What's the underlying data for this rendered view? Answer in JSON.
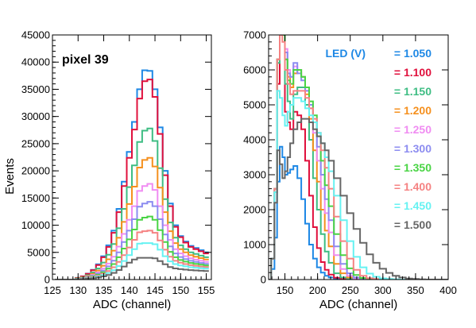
{
  "chart_data": [
    {
      "type": "line",
      "style": "step-histogram",
      "annotation": "pixel 39",
      "xlabel": "ADC (channel)",
      "ylabel": "Events",
      "xlim": [
        125,
        156
      ],
      "ylim": [
        0,
        45000
      ],
      "x_ticks": [
        "125",
        "130",
        "135",
        "140",
        "145",
        "150",
        "155"
      ],
      "y_ticks": [
        "0",
        "5000",
        "10000",
        "15000",
        "20000",
        "25000",
        "30000",
        "35000",
        "40000",
        "45000"
      ],
      "x": [
        126,
        127,
        128,
        129,
        130,
        131,
        132,
        133,
        134,
        135,
        136,
        137,
        138,
        139,
        140,
        141,
        142,
        143,
        144,
        145,
        146,
        147,
        148,
        149,
        150,
        151,
        152,
        153,
        154,
        155
      ],
      "series": [
        {
          "color": "#1e88e5",
          "values": [
            0,
            0,
            0,
            0,
            300,
            600,
            1100,
            1800,
            2800,
            4300,
            6300,
            9000,
            13000,
            18000,
            23500,
            29000,
            35000,
            38500,
            38400,
            35000,
            28000,
            20000,
            14000,
            10000,
            8000,
            7000,
            6200,
            5800,
            5400,
            5000
          ]
        },
        {
          "color": "#e0103c",
          "values": [
            0,
            0,
            0,
            0,
            290,
            580,
            1050,
            1720,
            2670,
            4100,
            6000,
            8600,
            12400,
            17200,
            22400,
            27600,
            33300,
            36500,
            36800,
            33600,
            26800,
            19200,
            13500,
            9700,
            7800,
            6800,
            6000,
            5600,
            5200,
            4800
          ]
        },
        {
          "color": "#3ebd83",
          "values": [
            0,
            0,
            0,
            0,
            220,
            440,
            800,
            1310,
            2030,
            3120,
            4570,
            6540,
            9440,
            13000,
            17000,
            21000,
            25300,
            27400,
            27800,
            25500,
            20500,
            14800,
            10500,
            7700,
            6300,
            5600,
            5000,
            4700,
            4400,
            4100
          ]
        },
        {
          "color": "#f5901e",
          "values": [
            0,
            0,
            0,
            0,
            180,
            360,
            650,
            1060,
            1660,
            2540,
            3720,
            5320,
            7680,
            10600,
            13900,
            17100,
            20600,
            22000,
            22400,
            20800,
            16900,
            12400,
            8900,
            6700,
            5600,
            5000,
            4500,
            4200,
            3950,
            3700
          ]
        },
        {
          "color": "#f08cf2",
          "values": [
            0,
            0,
            0,
            0,
            140,
            280,
            520,
            840,
            1320,
            2000,
            2940,
            4200,
            6060,
            8400,
            11000,
            13500,
            16300,
            17200,
            17600,
            16500,
            13500,
            10000,
            7300,
            5600,
            4800,
            4300,
            3900,
            3650,
            3450,
            3250
          ]
        },
        {
          "color": "#8c8cf0",
          "values": [
            0,
            0,
            0,
            0,
            120,
            230,
            430,
            690,
            1080,
            1650,
            2420,
            3460,
            5000,
            6900,
            9000,
            11100,
            13400,
            14000,
            14300,
            13500,
            11100,
            8300,
            6100,
            4800,
            4150,
            3750,
            3450,
            3250,
            3050,
            2900
          ]
        },
        {
          "color": "#49d444",
          "values": [
            0,
            0,
            0,
            0,
            95,
            190,
            350,
            570,
            890,
            1360,
            2000,
            2850,
            4100,
            5700,
            7400,
            9200,
            11000,
            11400,
            11600,
            11000,
            9100,
            6900,
            5100,
            4100,
            3600,
            3300,
            3050,
            2900,
            2750,
            2600
          ]
        },
        {
          "color": "#f58282",
          "values": [
            0,
            0,
            0,
            0,
            75,
            150,
            280,
            450,
            710,
            1080,
            1580,
            2260,
            3260,
            4500,
            5900,
            7300,
            8700,
            8900,
            9000,
            8600,
            7200,
            5500,
            4200,
            3450,
            3100,
            2850,
            2650,
            2520,
            2400,
            2300
          ]
        },
        {
          "color": "#66f2f2",
          "values": [
            0,
            0,
            0,
            0,
            60,
            115,
            210,
            340,
            540,
            820,
            1200,
            1720,
            2480,
            3420,
            4500,
            5600,
            6600,
            6700,
            6700,
            6500,
            5500,
            4300,
            3350,
            2850,
            2600,
            2420,
            2270,
            2170,
            2080,
            2000
          ]
        },
        {
          "color": "#666666",
          "values": [
            0,
            0,
            0,
            0,
            40,
            80,
            150,
            240,
            380,
            580,
            850,
            1220,
            1750,
            2400,
            3100,
            3700,
            4000,
            4000,
            4000,
            3900,
            3400,
            2800,
            2300,
            2050,
            1920,
            1820,
            1740,
            1680,
            1620,
            1570
          ]
        }
      ]
    },
    {
      "type": "line",
      "style": "step-histogram",
      "xlabel": "ADC (channel)",
      "ylabel": "",
      "xlim": [
        125,
        400
      ],
      "ylim": [
        0,
        7000
      ],
      "x_ticks": [
        "150",
        "200",
        "250",
        "300",
        "350",
        "400"
      ],
      "y_ticks": [
        "0",
        "1000",
        "2000",
        "3000",
        "4000",
        "5000",
        "6000",
        "7000"
      ],
      "legend_title": "LED (V)",
      "legend_placement": "right",
      "x": [
        126,
        132,
        136,
        140,
        144,
        148,
        152,
        156,
        160,
        166,
        172,
        178,
        184,
        190,
        196,
        202,
        208,
        214,
        220,
        230,
        240,
        250,
        260,
        270,
        280,
        290,
        300,
        310,
        320,
        330,
        340,
        350,
        360,
        370,
        380,
        390,
        398
      ],
      "series": [
        {
          "name": "= 1.050",
          "color": "#1e88e5",
          "values": [
            0,
            300,
            1200,
            2800,
            3800,
            3500,
            3000,
            3050,
            3150,
            3250,
            2900,
            2300,
            1600,
            1000,
            600,
            350,
            200,
            110,
            60,
            20,
            5,
            0,
            0,
            0,
            0,
            0,
            0,
            0,
            0,
            0,
            0,
            0,
            0,
            0,
            0,
            0,
            0
          ]
        },
        {
          "name": "= 1.100",
          "color": "#e0103c",
          "values": [
            0,
            600,
            2500,
            5600,
            7000,
            7000,
            4800,
            4500,
            4300,
            4800,
            4700,
            4300,
            3400,
            2400,
            1500,
            900,
            500,
            280,
            140,
            50,
            15,
            5,
            0,
            0,
            0,
            0,
            0,
            0,
            0,
            0,
            0,
            0,
            0,
            0,
            0,
            0,
            0
          ]
        },
        {
          "name": "= 1.150",
          "color": "#3ebd83",
          "values": [
            0,
            600,
            2600,
            6200,
            7000,
            7000,
            5600,
            5100,
            4600,
            5300,
            5500,
            5500,
            5000,
            4000,
            2900,
            2000,
            1300,
            800,
            480,
            180,
            60,
            15,
            5,
            0,
            0,
            0,
            0,
            0,
            0,
            0,
            0,
            0,
            0,
            0,
            0,
            0,
            0
          ]
        },
        {
          "name": "= 1.200",
          "color": "#f5901e",
          "values": [
            0,
            600,
            2600,
            6300,
            7000,
            7000,
            6300,
            5800,
            5500,
            5900,
            6000,
            5800,
            5300,
            4600,
            3700,
            2800,
            2000,
            1400,
            950,
            450,
            180,
            60,
            20,
            5,
            0,
            0,
            0,
            0,
            0,
            0,
            0,
            0,
            0,
            0,
            0,
            0,
            0
          ]
        },
        {
          "name": "= 1.250",
          "color": "#f08cf2",
          "values": [
            0,
            600,
            2600,
            6300,
            7000,
            7000,
            6600,
            6000,
            5800,
            6100,
            6000,
            5800,
            5400,
            4900,
            4200,
            3400,
            2600,
            1900,
            1350,
            700,
            300,
            110,
            35,
            10,
            0,
            0,
            0,
            0,
            0,
            0,
            0,
            0,
            0,
            0,
            0,
            0,
            0
          ]
        },
        {
          "name": "= 1.300",
          "color": "#8c8cf0",
          "values": [
            0,
            600,
            2600,
            6300,
            7000,
            7000,
            6500,
            5900,
            5800,
            6200,
            5900,
            5700,
            5400,
            5000,
            4500,
            3800,
            3000,
            2300,
            1700,
            950,
            450,
            180,
            60,
            20,
            5,
            0,
            0,
            0,
            0,
            0,
            0,
            0,
            0,
            0,
            0,
            0,
            0
          ]
        },
        {
          "name": "= 1.350",
          "color": "#49d444",
          "values": [
            0,
            600,
            2600,
            6300,
            7000,
            7000,
            6300,
            5700,
            5600,
            6000,
            6000,
            5800,
            5500,
            5100,
            4700,
            4100,
            3400,
            2700,
            2100,
            1300,
            700,
            320,
            130,
            45,
            15,
            5,
            0,
            0,
            0,
            0,
            0,
            0,
            0,
            0,
            0,
            0,
            0
          ]
        },
        {
          "name": "= 1.400",
          "color": "#f58282",
          "values": [
            0,
            600,
            2600,
            6300,
            7000,
            6800,
            6000,
            5600,
            5300,
            5400,
            5400,
            5400,
            5200,
            4900,
            4600,
            4200,
            3700,
            3200,
            2600,
            1800,
            1100,
            600,
            280,
            110,
            40,
            15,
            5,
            0,
            0,
            0,
            0,
            0,
            0,
            0,
            0,
            0,
            0
          ]
        },
        {
          "name": "= 1.450",
          "color": "#66f2f2",
          "values": [
            0,
            600,
            2500,
            5400,
            5200,
            4700,
            4400,
            4800,
            5000,
            5200,
            5200,
            5100,
            4900,
            4700,
            4500,
            4200,
            3900,
            3500,
            3100,
            2400,
            1700,
            1100,
            650,
            350,
            170,
            80,
            35,
            15,
            5,
            0,
            0,
            0,
            0,
            0,
            0,
            0,
            0
          ]
        },
        {
          "name": "= 1.500",
          "color": "#666666",
          "values": [
            0,
            600,
            2200,
            3700,
            3300,
            2900,
            3100,
            3500,
            3900,
            4300,
            4500,
            4600,
            4600,
            4500,
            4300,
            4100,
            3900,
            3700,
            3400,
            2900,
            2400,
            1900,
            1450,
            1050,
            720,
            480,
            310,
            190,
            110,
            60,
            30,
            15,
            5,
            0,
            0,
            0,
            0
          ]
        }
      ]
    }
  ]
}
